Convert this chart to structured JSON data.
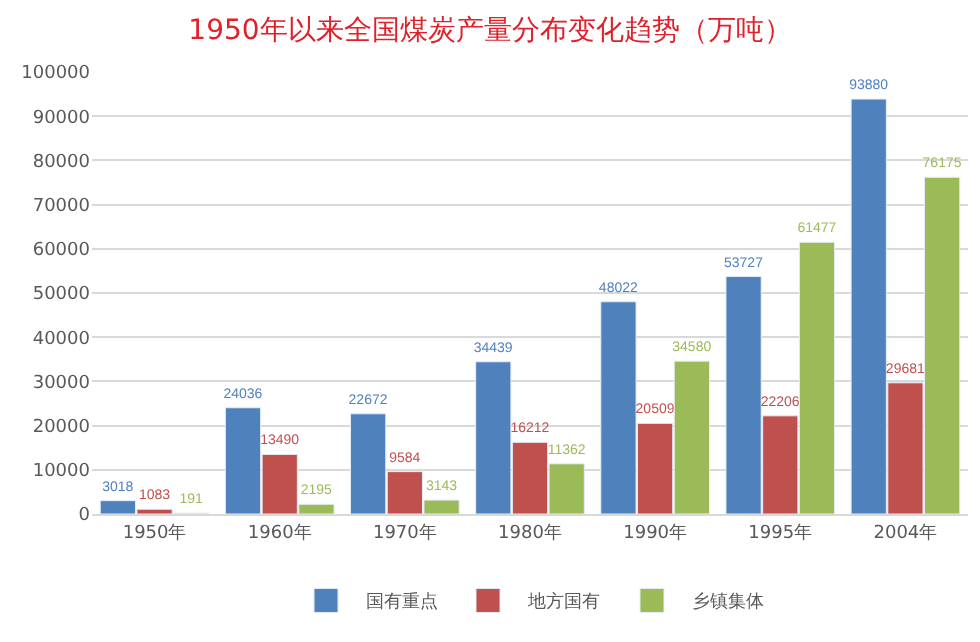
{
  "chart_data": {
    "type": "bar",
    "title": "1950年以来全国煤炭产量分布变化趋势（万吨）",
    "categories": [
      "1950年",
      "1960年",
      "1970年",
      "1980年",
      "1990年",
      "1995年",
      "2004年"
    ],
    "series": [
      {
        "name": "国有重点",
        "color": "#4f81bd",
        "values": [
          3018,
          24036,
          22672,
          34439,
          48022,
          53727,
          93880
        ]
      },
      {
        "name": "地方国有",
        "color": "#c0504d",
        "values": [
          1083,
          13490,
          9584,
          16212,
          20509,
          22206,
          29681
        ]
      },
      {
        "name": "乡镇集体",
        "color": "#9bbb59",
        "values": [
          191,
          2195,
          3143,
          11362,
          34580,
          61477,
          76175
        ]
      }
    ],
    "ylim": [
      0,
      100000
    ],
    "yticks": [
      0,
      10000,
      20000,
      30000,
      40000,
      50000,
      60000,
      70000,
      80000,
      90000,
      100000
    ],
    "grid": "y",
    "legend": "bottom",
    "data_labels": true
  }
}
